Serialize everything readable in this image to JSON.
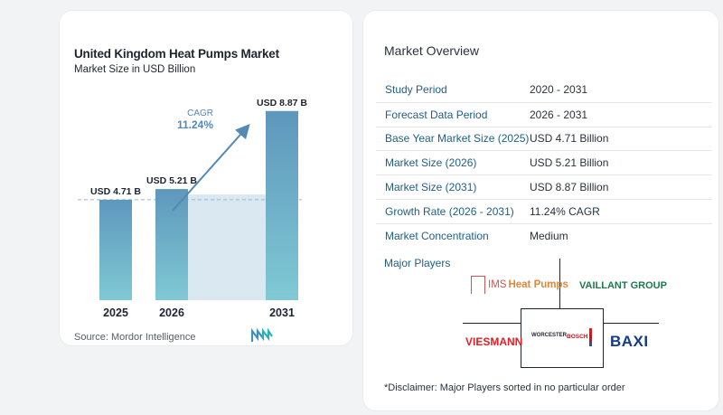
{
  "chart_data": {
    "type": "bar",
    "title": "United Kingdom Heat Pumps Market",
    "subtitle": "Market Size in USD Billion",
    "categories": [
      "2025",
      "2026",
      "2031"
    ],
    "values": [
      4.71,
      5.21,
      8.87
    ],
    "data_labels": [
      "USD 4.71 B",
      "USD 5.21 B",
      "USD 8.87 B"
    ],
    "ylim": [
      0,
      9.2
    ],
    "cagr_label": "CAGR",
    "cagr_value": "11.24%",
    "reference_line_value": 4.71,
    "colors": {
      "bar": "#6fa6c6",
      "bar_base": "#7ec7d3",
      "band": "#d9e8f1",
      "arrow": "#5289b5",
      "cagr": "#5289b5"
    }
  },
  "source": "Source:  Mordor Intelligence",
  "overview": {
    "heading": "Market Overview",
    "rows": [
      {
        "label": "Study Period",
        "value": "2020 - 2031"
      },
      {
        "label": "Forecast Data Period",
        "value": "2026 - 2031"
      },
      {
        "label": "Base Year Market Size (2025)",
        "value": "USD 4.71 Billion"
      },
      {
        "label": "Market Size (2026)",
        "value": "USD 5.21 Billion"
      },
      {
        "label": "Market Size (2031)",
        "value": "USD 8.87 Billion"
      },
      {
        "label": "Growth Rate (2026 - 2031)",
        "value": "11.24% CAGR"
      },
      {
        "label": "Market Concentration",
        "value": "Medium"
      }
    ]
  },
  "players": {
    "heading": "Major Players",
    "ims_text1": "IMS",
    "ims_text2": "Heat Pumps",
    "vaillant": "VAILLANT GROUP",
    "viessmann": "VIESMANN",
    "worcester": "WORCESTER",
    "bosch": "BOSCH",
    "baxi": "BAXI"
  },
  "disclaimer": "*Disclaimer: Major Players sorted in no particular order"
}
